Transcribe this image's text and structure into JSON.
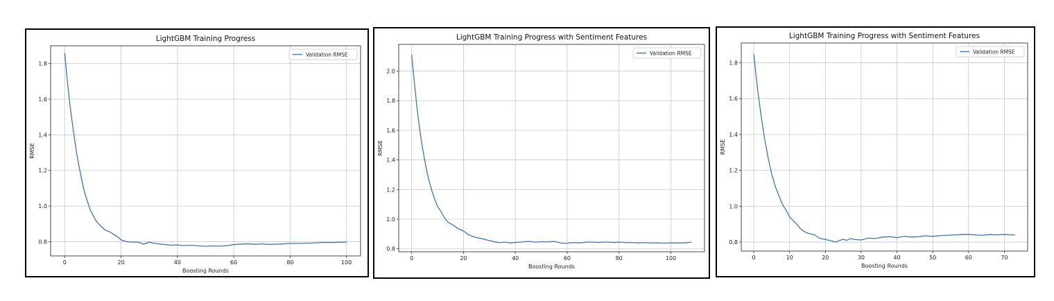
{
  "chart_data": [
    {
      "type": "line",
      "title": "LightGBM Training Progress",
      "xlabel": "Boosting Rounds",
      "ylabel": "RMSE",
      "xlim": [
        -5,
        105
      ],
      "ylim": [
        0.72,
        1.9
      ],
      "xticks": [
        0,
        20,
        40,
        60,
        80,
        100
      ],
      "yticks": [
        0.8,
        1.0,
        1.2,
        1.4,
        1.6,
        1.8
      ],
      "ytick_labels": [
        "0.8",
        "1.0",
        "1.2",
        "1.4",
        "1.6",
        "1.8"
      ],
      "grid": true,
      "legend_position": "top-right",
      "color": "#3d76b4",
      "series": [
        {
          "name": "Validation RMSE",
          "x": [
            0,
            1,
            2,
            3,
            4,
            5,
            6,
            7,
            8,
            9,
            10,
            11,
            12,
            13,
            14,
            15,
            16,
            17,
            18,
            19,
            20,
            22,
            24,
            26,
            28,
            30,
            32,
            35,
            38,
            40,
            42,
            45,
            48,
            50,
            52,
            55,
            58,
            60,
            62,
            65,
            68,
            70,
            72,
            75,
            78,
            80,
            82,
            85,
            88,
            90,
            92,
            95,
            98,
            100
          ],
          "y": [
            1.86,
            1.69,
            1.55,
            1.43,
            1.32,
            1.23,
            1.15,
            1.08,
            1.03,
            0.98,
            0.95,
            0.92,
            0.9,
            0.885,
            0.87,
            0.86,
            0.855,
            0.845,
            0.835,
            0.825,
            0.81,
            0.8,
            0.797,
            0.798,
            0.786,
            0.797,
            0.79,
            0.785,
            0.78,
            0.782,
            0.778,
            0.78,
            0.776,
            0.774,
            0.776,
            0.775,
            0.778,
            0.784,
            0.786,
            0.788,
            0.785,
            0.788,
            0.785,
            0.786,
            0.788,
            0.79,
            0.79,
            0.791,
            0.792,
            0.794,
            0.796,
            0.795,
            0.797,
            0.797
          ]
        }
      ]
    },
    {
      "type": "line",
      "title": "LightGBM Training Progress with Sentiment Features",
      "xlabel": "Boosting Rounds",
      "ylabel": "RMSE",
      "xlim": [
        -5,
        113
      ],
      "ylim": [
        0.78,
        2.18
      ],
      "xticks": [
        0,
        20,
        40,
        60,
        80,
        100
      ],
      "yticks": [
        0.8,
        1.0,
        1.2,
        1.4,
        1.6,
        1.8,
        2.0
      ],
      "ytick_labels": [
        "0.8",
        "1.0",
        "1.2",
        "1.4",
        "1.6",
        "1.8",
        "2.0"
      ],
      "grid": true,
      "legend_position": "top-right",
      "color": "#3d76b4",
      "series": [
        {
          "name": "Validation RMSE",
          "x": [
            0,
            1,
            2,
            3,
            4,
            5,
            6,
            7,
            8,
            9,
            10,
            11,
            12,
            13,
            14,
            15,
            16,
            18,
            20,
            22,
            24,
            26,
            28,
            30,
            32,
            34,
            36,
            38,
            40,
            42,
            45,
            48,
            50,
            52,
            55,
            58,
            60,
            62,
            65,
            68,
            70,
            72,
            75,
            78,
            80,
            82,
            85,
            88,
            90,
            92,
            95,
            98,
            100,
            102,
            105,
            108
          ],
          "y": [
            2.11,
            1.93,
            1.76,
            1.62,
            1.5,
            1.4,
            1.31,
            1.24,
            1.18,
            1.13,
            1.085,
            1.06,
            1.03,
            1.0,
            0.98,
            0.97,
            0.96,
            0.935,
            0.92,
            0.895,
            0.88,
            0.872,
            0.865,
            0.855,
            0.847,
            0.842,
            0.845,
            0.84,
            0.843,
            0.845,
            0.85,
            0.845,
            0.848,
            0.846,
            0.85,
            0.838,
            0.838,
            0.842,
            0.84,
            0.846,
            0.845,
            0.843,
            0.846,
            0.843,
            0.845,
            0.843,
            0.842,
            0.84,
            0.842,
            0.84,
            0.84,
            0.838,
            0.84,
            0.84,
            0.84,
            0.845
          ]
        }
      ]
    },
    {
      "type": "line",
      "title": "LightGBM Training Progress with Sentiment Features",
      "xlabel": "Boosting Rounds",
      "ylabel": "RMSE",
      "xlim": [
        -3.5,
        76.5
      ],
      "ylim": [
        0.75,
        1.91
      ],
      "xticks": [
        0,
        10,
        20,
        30,
        40,
        50,
        60,
        70
      ],
      "yticks": [
        0.8,
        1.0,
        1.2,
        1.4,
        1.6,
        1.8
      ],
      "ytick_labels": [
        "0.8",
        "1.0",
        "1.2",
        "1.4",
        "1.6",
        "1.8"
      ],
      "grid": true,
      "legend_position": "top-right",
      "color": "#3d76b4",
      "series": [
        {
          "name": "Validation RMSE",
          "x": [
            0,
            1,
            2,
            3,
            4,
            5,
            6,
            7,
            8,
            9,
            10,
            11,
            12,
            13,
            14,
            15,
            16,
            17,
            18,
            19,
            20,
            21,
            22,
            23,
            24,
            25,
            26,
            27,
            28,
            30,
            32,
            34,
            36,
            38,
            40,
            42,
            44,
            46,
            48,
            50,
            52,
            54,
            56,
            58,
            60,
            62,
            64,
            66,
            68,
            70,
            72,
            73
          ],
          "y": [
            1.85,
            1.66,
            1.51,
            1.38,
            1.27,
            1.18,
            1.11,
            1.06,
            1.01,
            0.98,
            0.94,
            0.92,
            0.9,
            0.875,
            0.86,
            0.85,
            0.845,
            0.84,
            0.825,
            0.818,
            0.815,
            0.81,
            0.805,
            0.8,
            0.81,
            0.815,
            0.81,
            0.82,
            0.815,
            0.812,
            0.822,
            0.82,
            0.828,
            0.83,
            0.825,
            0.832,
            0.828,
            0.83,
            0.835,
            0.832,
            0.836,
            0.838,
            0.84,
            0.842,
            0.843,
            0.84,
            0.838,
            0.842,
            0.84,
            0.843,
            0.84,
            0.84
          ]
        }
      ]
    }
  ]
}
